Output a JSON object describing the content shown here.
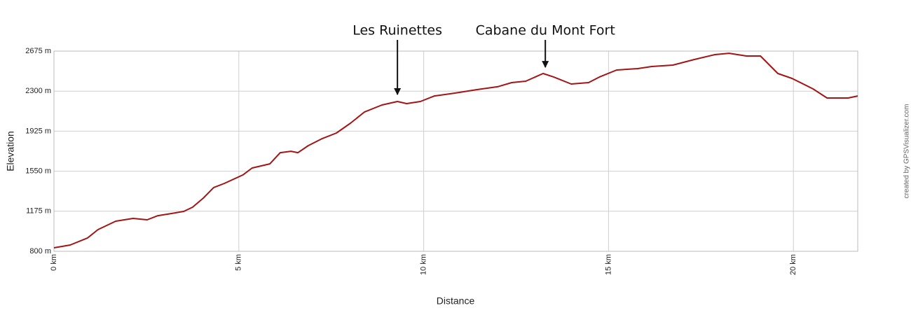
{
  "chart_data": {
    "type": "line",
    "x_label": "Distance",
    "y_label": "Elevation",
    "credit": "created by GPSVisualizer.com",
    "color": "#a31515",
    "grid": true,
    "xlim": [
      0,
      21.74
    ],
    "ylim": [
      800,
      2675
    ],
    "xticks": [
      {
        "value": 0,
        "label": "0 km"
      },
      {
        "value": 5,
        "label": "5 km"
      },
      {
        "value": 10,
        "label": "10 km"
      },
      {
        "value": 15,
        "label": "15 km"
      },
      {
        "value": 20,
        "label": "20 km"
      }
    ],
    "yticks": [
      {
        "value": 800,
        "label": "800 m"
      },
      {
        "value": 1175,
        "label": "1175 m"
      },
      {
        "value": 1550,
        "label": "1550 m"
      },
      {
        "value": 1925,
        "label": "1925 m"
      },
      {
        "value": 2300,
        "label": "2300 m"
      },
      {
        "value": 2675,
        "label": "2675 m"
      }
    ],
    "annotations": [
      {
        "text": "Les Ruinettes",
        "x": 9.29
      },
      {
        "text": "Cabane du Mont Fort",
        "x": 13.29
      }
    ],
    "x": [
      0,
      0.44,
      0.91,
      1.19,
      1.67,
      2.14,
      2.52,
      2.81,
      3.18,
      3.51,
      3.75,
      4.04,
      4.32,
      4.61,
      5.11,
      5.36,
      5.84,
      6.12,
      6.41,
      6.6,
      6.88,
      7.26,
      7.64,
      8.02,
      8.4,
      8.87,
      9.29,
      9.54,
      9.91,
      10.29,
      10.86,
      11.43,
      12.0,
      12.38,
      12.76,
      13.23,
      13.52,
      13.99,
      14.46,
      14.75,
      15.22,
      15.79,
      16.17,
      16.74,
      17.31,
      17.88,
      18.26,
      18.73,
      19.11,
      19.58,
      19.96,
      20.53,
      20.91,
      21.48,
      21.74
    ],
    "values": [
      833,
      859,
      925,
      1003,
      1082,
      1108,
      1095,
      1134,
      1154,
      1174,
      1213,
      1298,
      1397,
      1436,
      1515,
      1580,
      1619,
      1724,
      1737,
      1724,
      1790,
      1856,
      1908,
      2000,
      2105,
      2170,
      2203,
      2183,
      2203,
      2255,
      2282,
      2314,
      2341,
      2380,
      2393,
      2465,
      2432,
      2367,
      2380,
      2432,
      2498,
      2511,
      2531,
      2544,
      2596,
      2642,
      2655,
      2629,
      2629,
      2465,
      2419,
      2321,
      2236,
      2236,
      2255
    ]
  }
}
